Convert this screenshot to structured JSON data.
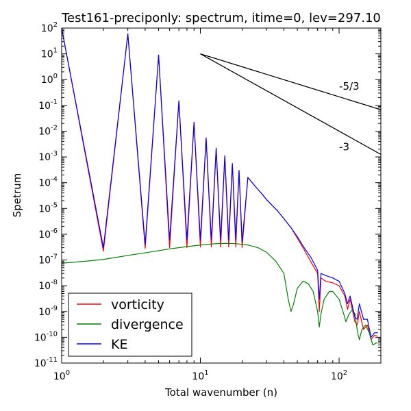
{
  "chart_data": {
    "type": "line",
    "title": "Test161-preciponly: spectrum, itime=0, lev=297.10",
    "xlabel": "Total wavenumber (n)",
    "ylabel": "Spetrum",
    "xscale": "log",
    "yscale": "log",
    "xlim": [
      1,
      200
    ],
    "ylim": [
      1e-11,
      100
    ],
    "xticks": [
      {
        "value": 1,
        "base": "10",
        "exp": "0"
      },
      {
        "value": 10,
        "base": "10",
        "exp": "1"
      },
      {
        "value": 100,
        "base": "10",
        "exp": "2"
      }
    ],
    "yticks": [
      {
        "value": 1e-11,
        "base": "10",
        "exp": "-11"
      },
      {
        "value": 1e-10,
        "base": "10",
        "exp": "-10"
      },
      {
        "value": 1e-09,
        "base": "10",
        "exp": "-9"
      },
      {
        "value": 1e-08,
        "base": "10",
        "exp": "-8"
      },
      {
        "value": 1e-07,
        "base": "10",
        "exp": "-7"
      },
      {
        "value": 1e-06,
        "base": "10",
        "exp": "-6"
      },
      {
        "value": 1e-05,
        "base": "10",
        "exp": "-5"
      },
      {
        "value": 0.0001,
        "base": "10",
        "exp": "-4"
      },
      {
        "value": 0.001,
        "base": "10",
        "exp": "-3"
      },
      {
        "value": 0.01,
        "base": "10",
        "exp": "-2"
      },
      {
        "value": 0.1,
        "base": "10",
        "exp": "-1"
      },
      {
        "value": 1,
        "base": "10",
        "exp": "0"
      },
      {
        "value": 10,
        "base": "10",
        "exp": "1"
      },
      {
        "value": 100,
        "base": "10",
        "exp": "2"
      }
    ],
    "grid": false,
    "legend_position": "lower-left",
    "series": [
      {
        "name": "vorticity",
        "color": "#ff0000",
        "points": [
          [
            1,
            100
          ],
          [
            2,
            2.2e-07
          ],
          [
            3,
            60
          ],
          [
            4,
            2.8e-07
          ],
          [
            5,
            9
          ],
          [
            6,
            3e-07
          ],
          [
            7,
            0.15
          ],
          [
            8,
            3e-07
          ],
          [
            9,
            0.022
          ],
          [
            10,
            3.2e-07
          ],
          [
            11,
            0.0055
          ],
          [
            12,
            3.2e-07
          ],
          [
            13,
            0.0022
          ],
          [
            14,
            3.2e-07
          ],
          [
            15,
            0.0011
          ],
          [
            16,
            3.2e-07
          ],
          [
            17,
            0.00055
          ],
          [
            18,
            3.2e-07
          ],
          [
            19,
            0.0003
          ],
          [
            20,
            3e-07
          ],
          [
            22,
            0.00016
          ],
          [
            24,
            9e-05
          ],
          [
            26,
            5.5e-05
          ],
          [
            28,
            3.5e-05
          ],
          [
            30,
            2.2e-05
          ],
          [
            33,
            1.3e-05
          ],
          [
            36,
            8e-06
          ],
          [
            40,
            4e-06
          ],
          [
            45,
            1.8e-06
          ],
          [
            50,
            7e-07
          ],
          [
            56,
            2.5e-07
          ],
          [
            63,
            8e-08
          ],
          [
            70,
            3e-08
          ],
          [
            72,
            1e-09
          ],
          [
            74,
            2e-08
          ],
          [
            80,
            1.5e-08
          ],
          [
            90,
            1.3e-08
          ],
          [
            100,
            1e-08
          ],
          [
            110,
            4e-09
          ],
          [
            115,
            1.2e-09
          ],
          [
            120,
            3e-09
          ],
          [
            130,
            4e-10
          ],
          [
            135,
            3e-10
          ],
          [
            140,
            1e-09
          ],
          [
            150,
            2e-10
          ],
          [
            160,
            3e-10
          ],
          [
            170,
            8e-11
          ],
          [
            180,
            1.2e-10
          ],
          [
            190,
            1.1e-10
          ]
        ]
      },
      {
        "name": "divergence",
        "color": "#008000",
        "points": [
          [
            1,
            7.5e-08
          ],
          [
            1.5,
            9e-08
          ],
          [
            2,
            1.05e-07
          ],
          [
            3,
            1.5e-07
          ],
          [
            4,
            1.9e-07
          ],
          [
            5,
            2.3e-07
          ],
          [
            6,
            2.7e-07
          ],
          [
            8,
            3.3e-07
          ],
          [
            10,
            3.8e-07
          ],
          [
            13,
            4.3e-07
          ],
          [
            15,
            4.4e-07
          ],
          [
            18,
            4.3e-07
          ],
          [
            22,
            3.8e-07
          ],
          [
            26,
            3e-07
          ],
          [
            30,
            2e-07
          ],
          [
            35,
            9e-08
          ],
          [
            40,
            3e-08
          ],
          [
            43,
            3e-09
          ],
          [
            45,
            1e-09
          ],
          [
            47,
            2e-09
          ],
          [
            50,
            8e-09
          ],
          [
            55,
            1.5e-08
          ],
          [
            60,
            1.2e-08
          ],
          [
            65,
            6e-09
          ],
          [
            70,
            1e-09
          ],
          [
            72,
            2.5e-10
          ],
          [
            74,
            8e-10
          ],
          [
            78,
            3e-09
          ],
          [
            85,
            6e-09
          ],
          [
            90,
            6e-09
          ],
          [
            100,
            3e-09
          ],
          [
            108,
            8e-10
          ],
          [
            112,
            4e-10
          ],
          [
            118,
            8e-10
          ],
          [
            125,
            1.2e-09
          ],
          [
            130,
            8e-10
          ],
          [
            136,
            1.5e-10
          ],
          [
            140,
            8e-11
          ],
          [
            146,
            2e-10
          ],
          [
            155,
            3e-10
          ],
          [
            165,
            1.5e-10
          ],
          [
            175,
            5e-11
          ],
          [
            185,
            6e-11
          ],
          [
            190,
            6e-11
          ]
        ]
      },
      {
        "name": "KE",
        "color": "#0000ff",
        "points": [
          [
            1,
            100
          ],
          [
            2,
            3e-07
          ],
          [
            3,
            60
          ],
          [
            4,
            4e-07
          ],
          [
            5,
            9
          ],
          [
            6,
            6e-07
          ],
          [
            7,
            0.15
          ],
          [
            8,
            6e-07
          ],
          [
            9,
            0.022
          ],
          [
            10,
            6e-07
          ],
          [
            11,
            0.0055
          ],
          [
            12,
            6e-07
          ],
          [
            13,
            0.0022
          ],
          [
            14,
            6e-07
          ],
          [
            15,
            0.0011
          ],
          [
            16,
            6e-07
          ],
          [
            17,
            0.00055
          ],
          [
            18,
            6e-07
          ],
          [
            19,
            0.0003
          ],
          [
            20,
            5e-07
          ],
          [
            22,
            0.00016
          ],
          [
            24,
            9e-05
          ],
          [
            26,
            5.5e-05
          ],
          [
            28,
            3.5e-05
          ],
          [
            30,
            2.2e-05
          ],
          [
            33,
            1.3e-05
          ],
          [
            36,
            8e-06
          ],
          [
            40,
            4e-06
          ],
          [
            45,
            1.8e-06
          ],
          [
            50,
            8e-07
          ],
          [
            56,
            3e-07
          ],
          [
            63,
            1.2e-07
          ],
          [
            70,
            4e-08
          ],
          [
            72,
            3e-09
          ],
          [
            74,
            3e-08
          ],
          [
            80,
            2.5e-08
          ],
          [
            90,
            2e-08
          ],
          [
            100,
            1.5e-08
          ],
          [
            110,
            5e-09
          ],
          [
            115,
            2e-09
          ],
          [
            120,
            4e-09
          ],
          [
            130,
            6e-10
          ],
          [
            135,
            5e-10
          ],
          [
            140,
            2e-09
          ],
          [
            150,
            5e-10
          ],
          [
            160,
            5e-10
          ],
          [
            170,
            1e-10
          ],
          [
            180,
            1.5e-10
          ],
          [
            190,
            1.5e-10
          ]
        ]
      }
    ],
    "reference_lines": [
      {
        "label": "-5/3",
        "slope": -1.6667,
        "x0": 10,
        "y0": 10,
        "x_end": 200,
        "label_x": 100,
        "label_y": 0.4
      },
      {
        "label": "-3",
        "slope": -3,
        "x0": 10,
        "y0": 10,
        "x_end": 200,
        "label_x": 100,
        "label_y": 0.0018
      }
    ]
  }
}
